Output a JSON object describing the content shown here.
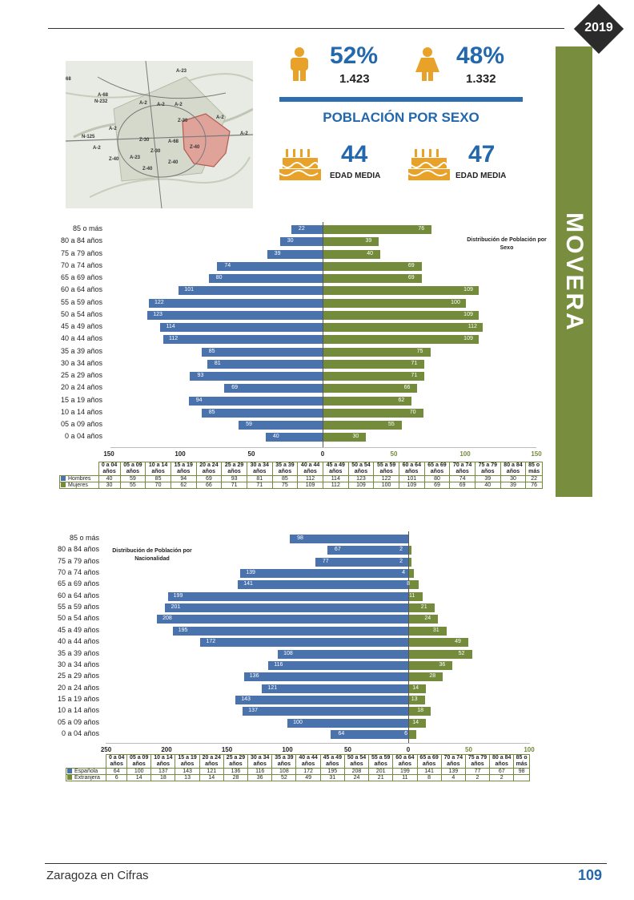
{
  "year": "2019",
  "district": "MOVERA",
  "section_title": "POBLACIÓN POR SEXO",
  "male": {
    "pct": "52%",
    "count": "1.423",
    "avg_age": "44",
    "avg_age_label": "EDAD MEDIA"
  },
  "female": {
    "pct": "48%",
    "count": "1.332",
    "avg_age": "47",
    "avg_age_label": "EDAD MEDIA"
  },
  "map": {
    "labels": [
      "68",
      "A-23",
      "A-68",
      "N-232",
      "A-2",
      "A-2",
      "A-2",
      "Z-30",
      "A-2",
      "A-2",
      "N-125",
      "Z-30",
      "A-68",
      "Z-40",
      "Z-30",
      "A-2",
      "A-2",
      "Z-40",
      "A-23",
      "Z-40",
      "Z-40"
    ]
  },
  "colors": {
    "blue": "#4a73ae",
    "green": "#748b3c",
    "accent": "#2367ad",
    "band": "#788e3e"
  },
  "chart_data": [
    {
      "type": "bar",
      "orientation": "horizontal-pyramid",
      "title": "Distribución de Población por Sexo",
      "categories": [
        "0 a 04 años",
        "05 a 09 años",
        "10 a 14 años",
        "15 a 19 años",
        "20 a 24 años",
        "25 a 29 años",
        "30 a 34 años",
        "35 a 39 años",
        "40 a 44 años",
        "45 a 49 años",
        "50 a 54 años",
        "55 a 59 años",
        "60 a 64 años",
        "65 a 69 años",
        "70 a 74 años",
        "75 a 79 años",
        "80 a 84 años",
        "85 o más"
      ],
      "table_headers": [
        [
          "0 a 04",
          "años"
        ],
        [
          "05 a 09",
          "años"
        ],
        [
          "10 a 14",
          "años"
        ],
        [
          "15 a 19",
          "años"
        ],
        [
          "20 a 24",
          "años"
        ],
        [
          "25 a 29",
          "años"
        ],
        [
          "30 a 34",
          "años"
        ],
        [
          "35 a 39",
          "años"
        ],
        [
          "40 a 44",
          "años"
        ],
        [
          "45 a 49",
          "años"
        ],
        [
          "50 a 54",
          "años"
        ],
        [
          "55 a 59",
          "años"
        ],
        [
          "60 a 64",
          "años"
        ],
        [
          "65 a 69",
          "años"
        ],
        [
          "70 a 74",
          "años"
        ],
        [
          "75 a 79",
          "años"
        ],
        [
          "80 a 84",
          "años"
        ],
        [
          "85 o",
          "más"
        ]
      ],
      "series": [
        {
          "name": "Hombres",
          "side": "left",
          "values": [
            40,
            59,
            85,
            94,
            69,
            93,
            81,
            85,
            112,
            114,
            123,
            122,
            101,
            80,
            74,
            39,
            30,
            22
          ]
        },
        {
          "name": "Mujeres",
          "side": "right",
          "values": [
            30,
            55,
            70,
            62,
            66,
            71,
            71,
            75,
            109,
            112,
            109,
            100,
            109,
            69,
            69,
            40,
            39,
            76
          ]
        }
      ],
      "xlim": [
        -150,
        150
      ],
      "ticks_left": [
        "150",
        "100",
        "50",
        "0"
      ],
      "ticks_right": [
        "50",
        "100",
        "150"
      ]
    },
    {
      "type": "bar",
      "orientation": "horizontal-pyramid",
      "title": "Distribución de Población por Nacionalidad",
      "categories": [
        "0 a 04 años",
        "05 a 09 años",
        "10 a 14 años",
        "15 a 19 años",
        "20 a 24 años",
        "25 a 29 años",
        "30 a 34 años",
        "35 a 39 años",
        "40 a 44 años",
        "45 a 49 años",
        "50 a 54 años",
        "55 a 59 años",
        "60 a 64 años",
        "65 a 69 años",
        "70 a 74 años",
        "75 a 79 años",
        "80 a 84 años",
        "85 o más"
      ],
      "table_headers": [
        [
          "0 a 04",
          "años"
        ],
        [
          "05 a 09",
          "años"
        ],
        [
          "10 a 14",
          "años"
        ],
        [
          "15 a 19",
          "años"
        ],
        [
          "20 a 24",
          "años"
        ],
        [
          "25 a 29",
          "años"
        ],
        [
          "30 a 34",
          "años"
        ],
        [
          "35 a 39",
          "años"
        ],
        [
          "40 a 44",
          "años"
        ],
        [
          "45 a 49",
          "años"
        ],
        [
          "50 a 54",
          "años"
        ],
        [
          "55 a 59",
          "años"
        ],
        [
          "60 a 64",
          "años"
        ],
        [
          "65 a 69",
          "años"
        ],
        [
          "70 a 74",
          "años"
        ],
        [
          "75 a 79",
          "años"
        ],
        [
          "80 a 84",
          "años"
        ],
        [
          "85 o",
          "más"
        ]
      ],
      "series": [
        {
          "name": "Española",
          "side": "left",
          "values": [
            64,
            100,
            137,
            143,
            121,
            136,
            116,
            108,
            172,
            195,
            208,
            201,
            199,
            141,
            139,
            77,
            67,
            98
          ]
        },
        {
          "name": "Extranjera",
          "side": "right",
          "values": [
            6,
            14,
            18,
            13,
            14,
            28,
            36,
            52,
            49,
            31,
            24,
            21,
            11,
            8,
            4,
            2,
            2,
            null
          ]
        }
      ],
      "xlim": [
        -250,
        100
      ],
      "ticks_left": [
        "250",
        "200",
        "150",
        "100",
        "50",
        "0"
      ],
      "ticks_right": [
        "50",
        "100"
      ]
    }
  ],
  "footer": {
    "text": "Zaragoza en Cifras",
    "page": "109"
  }
}
